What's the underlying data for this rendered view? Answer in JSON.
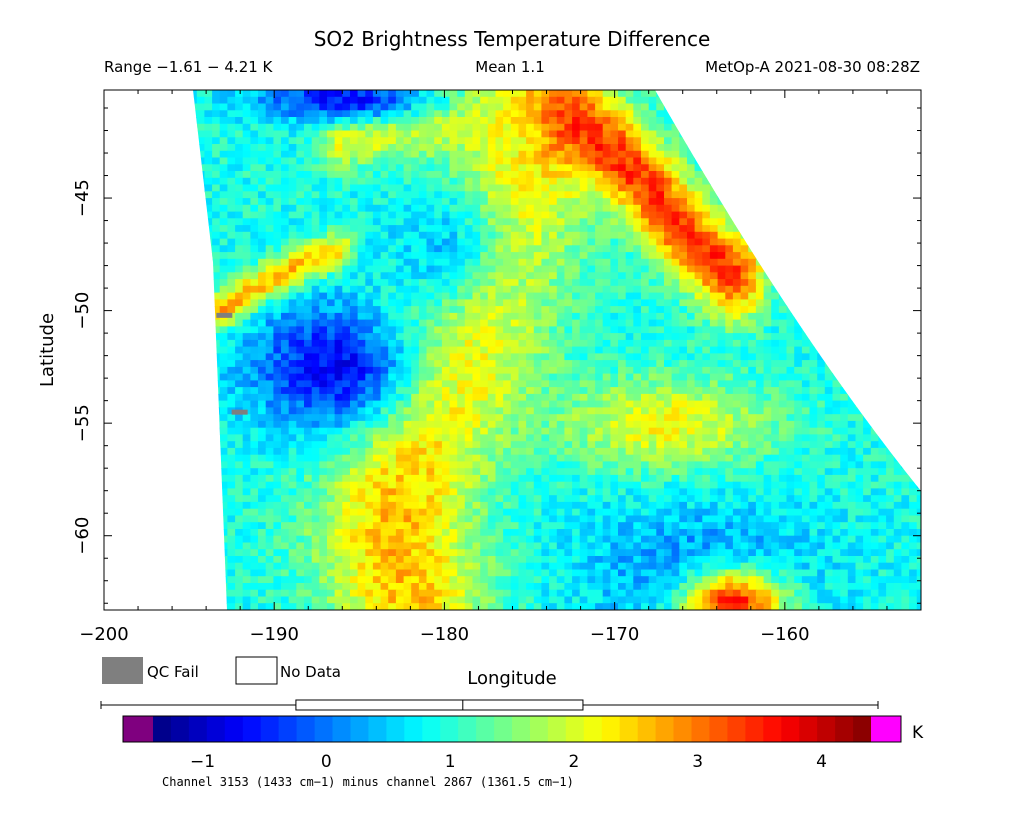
{
  "chart_data": {
    "type": "heatmap",
    "title": "SO2 Brightness Temperature Difference",
    "header_left": "Range −1.61 − 4.21 K",
    "header_center": "Mean 1.1",
    "header_right": "MetOp-A 2021-08-30 08:28Z",
    "xlabel": "Longitude",
    "ylabel": "Latitude",
    "xlim": [
      -200,
      -152
    ],
    "ylim": [
      -63.3,
      -40.2
    ],
    "x_ticks": [
      -200,
      -190,
      -180,
      -170,
      -160
    ],
    "x_tick_labels": [
      "−200",
      "−190",
      "−180",
      "−170",
      "−160"
    ],
    "y_ticks": [
      -45,
      -50,
      -55,
      -60
    ],
    "y_tick_labels": [
      "−45",
      "−50",
      "−55",
      "−60"
    ],
    "grid": false,
    "legend": [
      {
        "label": "QC Fail",
        "color": "#7f7f7f"
      },
      {
        "label": "No Data",
        "color": "#ffffff"
      }
    ],
    "colorbar": {
      "range": [
        -1.4,
        4.4
      ],
      "ticks": [
        -1,
        0,
        1,
        2,
        3,
        4
      ],
      "tick_labels": [
        "−1",
        "0",
        "1",
        "2",
        "3",
        "4"
      ],
      "unit": "K",
      "under_color": "#7f007f",
      "over_color": "#ff00ff",
      "caption": "Channel 3153 (1433 cm−1) minus channel 2867 (1361.5 cm−1)",
      "box_stats": {
        "whisker_min": -1.61,
        "q1": -0.15,
        "median": 1.1,
        "q3": 2.0,
        "whisker_max": 4.21
      }
    },
    "field_features": [
      {
        "kind": "ambient",
        "value": 0.9
      },
      {
        "kind": "band",
        "value": 2.6,
        "points": [
          [
            -175,
            -42
          ],
          [
            -176,
            -44
          ],
          [
            -177,
            -46
          ],
          [
            -178,
            -48
          ],
          [
            -178.5,
            -50
          ],
          [
            -179.5,
            -52
          ],
          [
            -181,
            -54
          ],
          [
            -182,
            -56
          ],
          [
            -182.5,
            -58
          ],
          [
            -183,
            -60
          ],
          [
            -182,
            -62.5
          ]
        ],
        "width": 3.2
      },
      {
        "kind": "band",
        "value": 3.4,
        "points": [
          [
            -172.5,
            -41.5
          ],
          [
            -170,
            -43
          ],
          [
            -168,
            -44.5
          ],
          [
            -166,
            -46.5
          ],
          [
            -163,
            -48.5
          ]
        ],
        "width": 1.3
      },
      {
        "kind": "band",
        "value": 2.2,
        "points": [
          [
            -186,
            -42.5
          ],
          [
            -181,
            -42
          ],
          [
            -176,
            -42.3
          ]
        ],
        "width": 0.9
      },
      {
        "kind": "band",
        "value": 3.0,
        "points": [
          [
            -193,
            -50
          ],
          [
            -190.5,
            -48.8
          ],
          [
            -188,
            -47.9
          ],
          [
            -186,
            -47.3
          ]
        ],
        "width": 0.6
      },
      {
        "kind": "blob",
        "value": -0.7,
        "center": [
          -186.5,
          -52.5
        ],
        "radius": [
          5,
          3
        ]
      },
      {
        "kind": "blob",
        "value": 0.5,
        "center": [
          -180.5,
          -47
        ],
        "radius": [
          4.5,
          3.5
        ]
      },
      {
        "kind": "blob",
        "value": -0.6,
        "center": [
          -186,
          -40.6
        ],
        "radius": [
          5,
          1
        ]
      },
      {
        "kind": "blob",
        "value": 0.1,
        "center": [
          -165,
          -61.5
        ],
        "radius": [
          7,
          3
        ]
      },
      {
        "kind": "blob",
        "value": 3.5,
        "center": [
          -163,
          -63
        ],
        "radius": [
          3,
          1.5
        ]
      },
      {
        "kind": "blob",
        "value": 2.2,
        "center": [
          -167,
          -55
        ],
        "radius": [
          6,
          2
        ]
      }
    ],
    "qc_fail_pixels": [
      [
        -193.4,
        -50.1
      ],
      [
        -192.5,
        -54.4
      ]
    ]
  },
  "style": {
    "colormap": [
      "#00007f",
      "#0000ff",
      "#007fff",
      "#00ffff",
      "#7fff7f",
      "#ffff00",
      "#ff7f00",
      "#ff0000",
      "#7f0000"
    ]
  }
}
